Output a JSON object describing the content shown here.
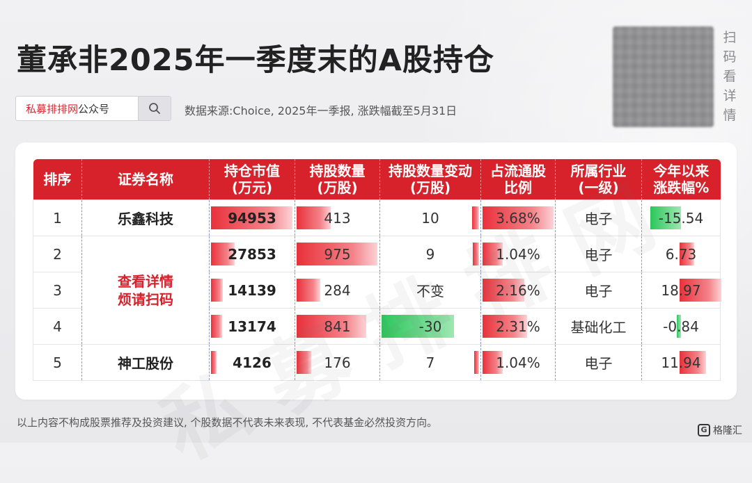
{
  "title": "董承非2025年一季度末的A股持仓",
  "search": {
    "brand": "私募排排网",
    "suffix": "公众号",
    "icon": "search-icon"
  },
  "source": "数据来源:Choice, 2025年一季报, 涨跌幅截至5月31日",
  "qr_caption": "扫码看详情",
  "table": {
    "headers": [
      "排序",
      "证券名称",
      "持仓市值\n(万元)",
      "持股数量\n(万股)",
      "持股数量变动\n(万股)",
      "占流通股\n比例",
      "所属行业\n(一级)",
      "今年以来\n涨跌幅%"
    ],
    "locked_text": "查看详情\n烦请扫码",
    "rows": [
      {
        "rank": "1",
        "name": "乐鑫科技",
        "market_value": "94953",
        "mv_value": 94953,
        "shares": "413",
        "shares_value": 413,
        "change": "10",
        "change_value": 10,
        "float_ratio": "3.68%",
        "ratio_value": 3.68,
        "industry": "电子",
        "ytd": "-15.54",
        "ytd_value": -15.54
      },
      {
        "rank": "2",
        "name": "",
        "market_value": "27853",
        "mv_value": 27853,
        "shares": "975",
        "shares_value": 975,
        "change": "9",
        "change_value": 9,
        "float_ratio": "1.04%",
        "ratio_value": 1.04,
        "industry": "电子",
        "ytd": "6.73",
        "ytd_value": 6.73
      },
      {
        "rank": "3",
        "name": "",
        "market_value": "14139",
        "mv_value": 14139,
        "shares": "284",
        "shares_value": 284,
        "change": "不变",
        "change_value": 0,
        "float_ratio": "2.16%",
        "ratio_value": 2.16,
        "industry": "电子",
        "ytd": "18.97",
        "ytd_value": 18.97
      },
      {
        "rank": "4",
        "name": "",
        "market_value": "13174",
        "mv_value": 13174,
        "shares": "841",
        "shares_value": 841,
        "change": "-30",
        "change_value": -30,
        "float_ratio": "2.31%",
        "ratio_value": 2.31,
        "industry": "基础化工",
        "ytd": "-0.84",
        "ytd_value": -0.84
      },
      {
        "rank": "5",
        "name": "神工股份",
        "market_value": "4126",
        "mv_value": 4126,
        "shares": "176",
        "shares_value": 176,
        "change": "7",
        "change_value": 7,
        "float_ratio": "1.04%",
        "ratio_value": 1.04,
        "industry": "电子",
        "ytd": "11.94",
        "ytd_value": 11.94
      }
    ]
  },
  "disclaimer": "以上内容不构成股票推荐及投资建议, 个股数据不代表未来表现, 不代表基金必然投资方向。",
  "logo": {
    "mark": "G",
    "text": "格隆汇"
  },
  "colors": {
    "accent_red": "#d7212b",
    "bar_green": "#2cc65c"
  }
}
